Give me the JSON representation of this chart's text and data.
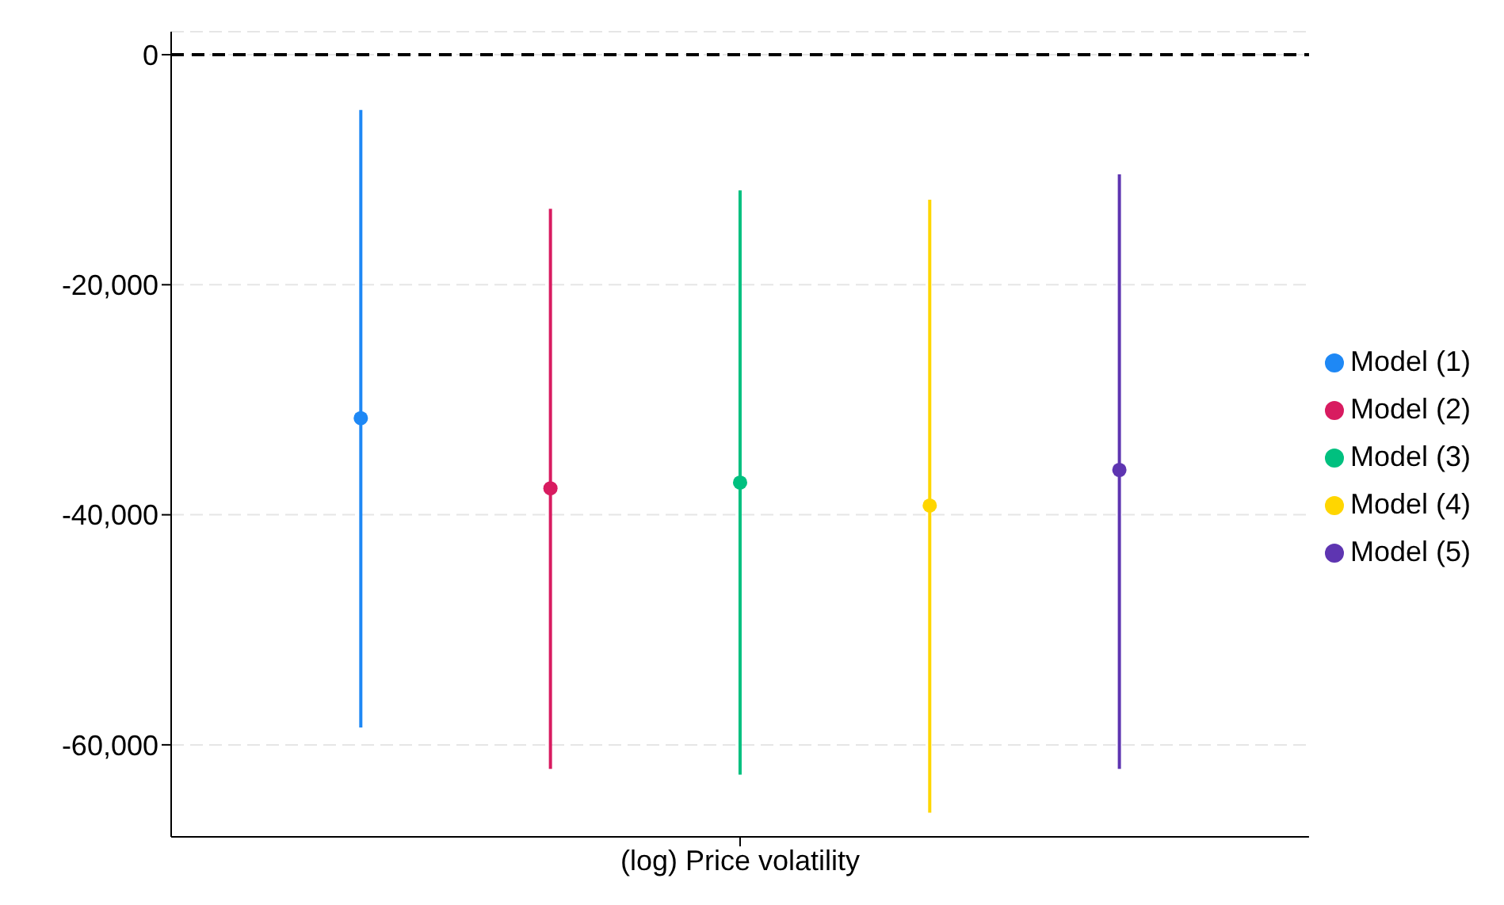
{
  "chart_data": {
    "type": "scatter",
    "categories": [
      "(log) Price volatility"
    ],
    "series": [
      {
        "name": "Model (1)",
        "color": "#1e88f5",
        "values": [
          -31600
        ],
        "errors": [
          [
            -58500,
            -4800
          ]
        ]
      },
      {
        "name": "Model (2)",
        "color": "#d81b60",
        "values": [
          -37700
        ],
        "errors": [
          [
            -62100,
            -13400
          ]
        ]
      },
      {
        "name": "Model (3)",
        "color": "#00c07f",
        "values": [
          -37200
        ],
        "errors": [
          [
            -62600,
            -11800
          ]
        ]
      },
      {
        "name": "Model (4)",
        "color": "#ffd600",
        "values": [
          -39200
        ],
        "errors": [
          [
            -65900,
            -12600
          ]
        ]
      },
      {
        "name": "Model (5)",
        "color": "#5e35b1",
        "values": [
          -36100
        ],
        "errors": [
          [
            -62100,
            -10400
          ]
        ]
      }
    ],
    "ylim": [
      -68000,
      2000
    ],
    "yticks": [
      {
        "value": -60000,
        "label": "-60,000"
      },
      {
        "value": -40000,
        "label": "-40,000"
      },
      {
        "value": -20000,
        "label": "-20,000"
      },
      0
    ],
    "ref_lines": [
      {
        "axis": "y",
        "value": 0,
        "color": "#000000",
        "line_style": "dashed"
      }
    ],
    "grid": "y",
    "legend": "right",
    "marker": "circle"
  }
}
